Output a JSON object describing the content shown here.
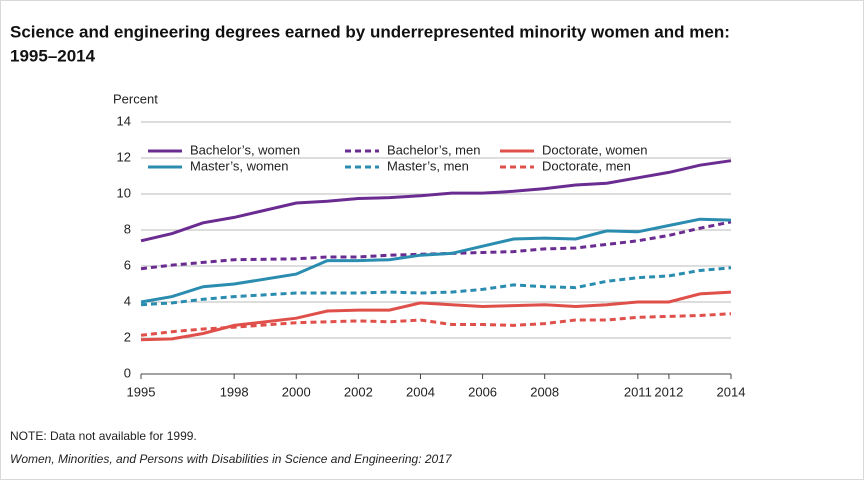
{
  "chart_data": {
    "type": "line",
    "title": [
      "Science and engineering degrees earned by underrepresented minority women and men:",
      "1995–2014"
    ],
    "y_label": "Percent",
    "note": "NOTE: Data not available for 1999.",
    "source": "Women, Minorities, and Persons with Disabilities in Science and Engineering: 2017",
    "x": [
      1995,
      1996,
      1997,
      1998,
      2000,
      2001,
      2002,
      2003,
      2004,
      2005,
      2006,
      2007,
      2008,
      2009,
      2010,
      2011,
      2012,
      2013,
      2014
    ],
    "xlim": [
      1995,
      2014
    ],
    "xticks": [
      1995,
      1998,
      2000,
      2002,
      2004,
      2006,
      2008,
      2011,
      2012,
      2014
    ],
    "ylim": [
      0,
      14
    ],
    "yticks": [
      0,
      2,
      4,
      6,
      8,
      10,
      12,
      14
    ],
    "grid": true,
    "series": [
      {
        "name": "Bachelor’s, women",
        "color": "#6b2c91",
        "dash": false,
        "values": [
          7.4,
          7.8,
          8.4,
          8.7,
          9.5,
          9.6,
          9.75,
          9.8,
          9.9,
          10.05,
          10.05,
          10.15,
          10.3,
          10.5,
          10.6,
          10.9,
          11.2,
          11.6,
          11.85
        ]
      },
      {
        "name": "Bachelor’s, men",
        "color": "#6b2c91",
        "dash": true,
        "values": [
          5.85,
          6.05,
          6.2,
          6.35,
          6.4,
          6.5,
          6.5,
          6.6,
          6.65,
          6.7,
          6.75,
          6.8,
          6.95,
          7.0,
          7.2,
          7.4,
          7.7,
          8.1,
          8.45
        ]
      },
      {
        "name": "Doctorate, women",
        "color": "#e0504b",
        "dash": false,
        "values": [
          1.9,
          1.95,
          2.25,
          2.7,
          3.1,
          3.5,
          3.55,
          3.55,
          3.95,
          3.85,
          3.75,
          3.8,
          3.85,
          3.75,
          3.85,
          4.0,
          4.0,
          4.45,
          4.55
        ]
      },
      {
        "name": "Master’s, women",
        "color": "#2a8db0",
        "dash": false,
        "values": [
          4.0,
          4.3,
          4.85,
          5.0,
          5.55,
          6.3,
          6.3,
          6.35,
          6.6,
          6.7,
          7.1,
          7.5,
          7.55,
          7.5,
          7.95,
          7.9,
          8.25,
          8.6,
          8.55
        ]
      },
      {
        "name": "Master’s, men",
        "color": "#2a8db0",
        "dash": true,
        "values": [
          3.85,
          3.95,
          4.15,
          4.3,
          4.5,
          4.5,
          4.5,
          4.55,
          4.5,
          4.55,
          4.7,
          4.95,
          4.85,
          4.8,
          5.15,
          5.35,
          5.45,
          5.75,
          5.9
        ]
      },
      {
        "name": "Doctorate, men",
        "color": "#e0504b",
        "dash": true,
        "values": [
          2.15,
          2.35,
          2.5,
          2.6,
          2.85,
          2.9,
          2.95,
          2.9,
          3.0,
          2.75,
          2.75,
          2.7,
          2.8,
          3.0,
          3.0,
          3.15,
          3.2,
          3.25,
          3.35
        ]
      }
    ]
  }
}
